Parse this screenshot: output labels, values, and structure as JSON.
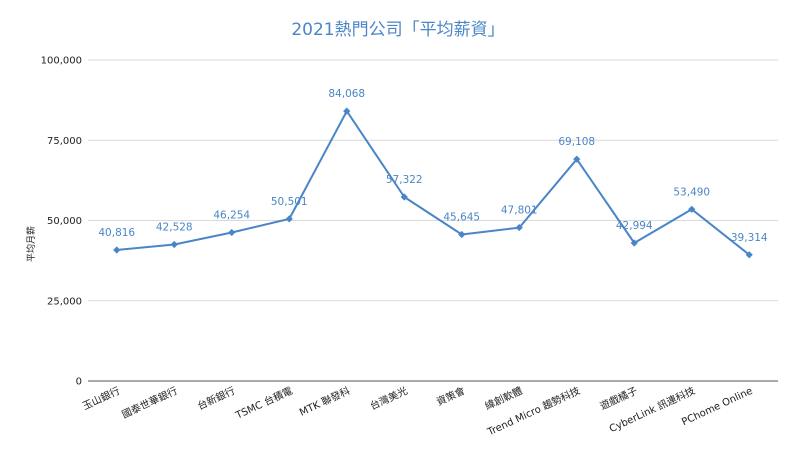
{
  "chart_data": {
    "type": "line",
    "title": "2021熱門公司「平均薪資」",
    "xlabel": "",
    "ylabel": "平均月薪",
    "ylim": [
      0,
      100000
    ],
    "yticks": [
      "0",
      "25,000",
      "50,000",
      "75,000",
      "100,000"
    ],
    "ytick_values": [
      0,
      25000,
      50000,
      75000,
      100000
    ],
    "grid": true,
    "legend": "none",
    "categories": [
      "玉山銀行",
      "國泰世華銀行",
      "台新銀行",
      "TSMC 台積電",
      "MTK 聯發科",
      "台灣美光",
      "資策會",
      "緯創軟體",
      "Trend Micro 趨勢科技",
      "遊戲橘子",
      "CyberLink 訊連科技",
      "PChome Online"
    ],
    "values": [
      40816,
      42528,
      46254,
      50501,
      84068,
      57322,
      45645,
      47801,
      69108,
      42994,
      53490,
      39314
    ],
    "value_labels": [
      "40,816",
      "42,528",
      "46,254",
      "50,501",
      "84,068",
      "57,322",
      "45,645",
      "47,801",
      "69,108",
      "42,994",
      "53,490",
      "39,314"
    ],
    "color": "#4a86c7"
  }
}
